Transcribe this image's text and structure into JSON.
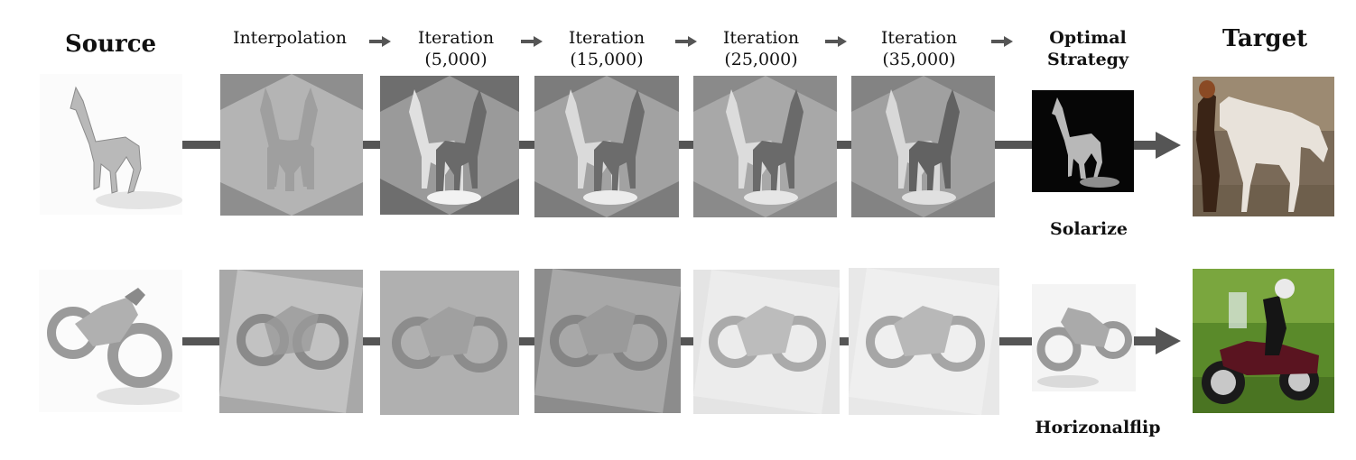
{
  "headers": {
    "source": "Source",
    "interpolation": "Interpolation",
    "iter1_line1": "Iteration",
    "iter1_line2": "(5,000)",
    "iter2_line1": "Iteration",
    "iter2_line2": "(15,000)",
    "iter3_line1": "Iteration",
    "iter3_line2": "(25,000)",
    "iter4_line1": "Iteration",
    "iter4_line2": "(35,000)",
    "optimal_line1": "Optimal",
    "optimal_line2": "Strategy",
    "target": "Target"
  },
  "rows": [
    {
      "subject": "horse",
      "strategy": "Solarize"
    },
    {
      "subject": "motorcycle",
      "strategy": "Horizonalflip"
    }
  ],
  "colors": {
    "connector": "#555555",
    "arrow": "#555555",
    "grass": "#5a8a2a",
    "bike_body": "#5a1420"
  }
}
